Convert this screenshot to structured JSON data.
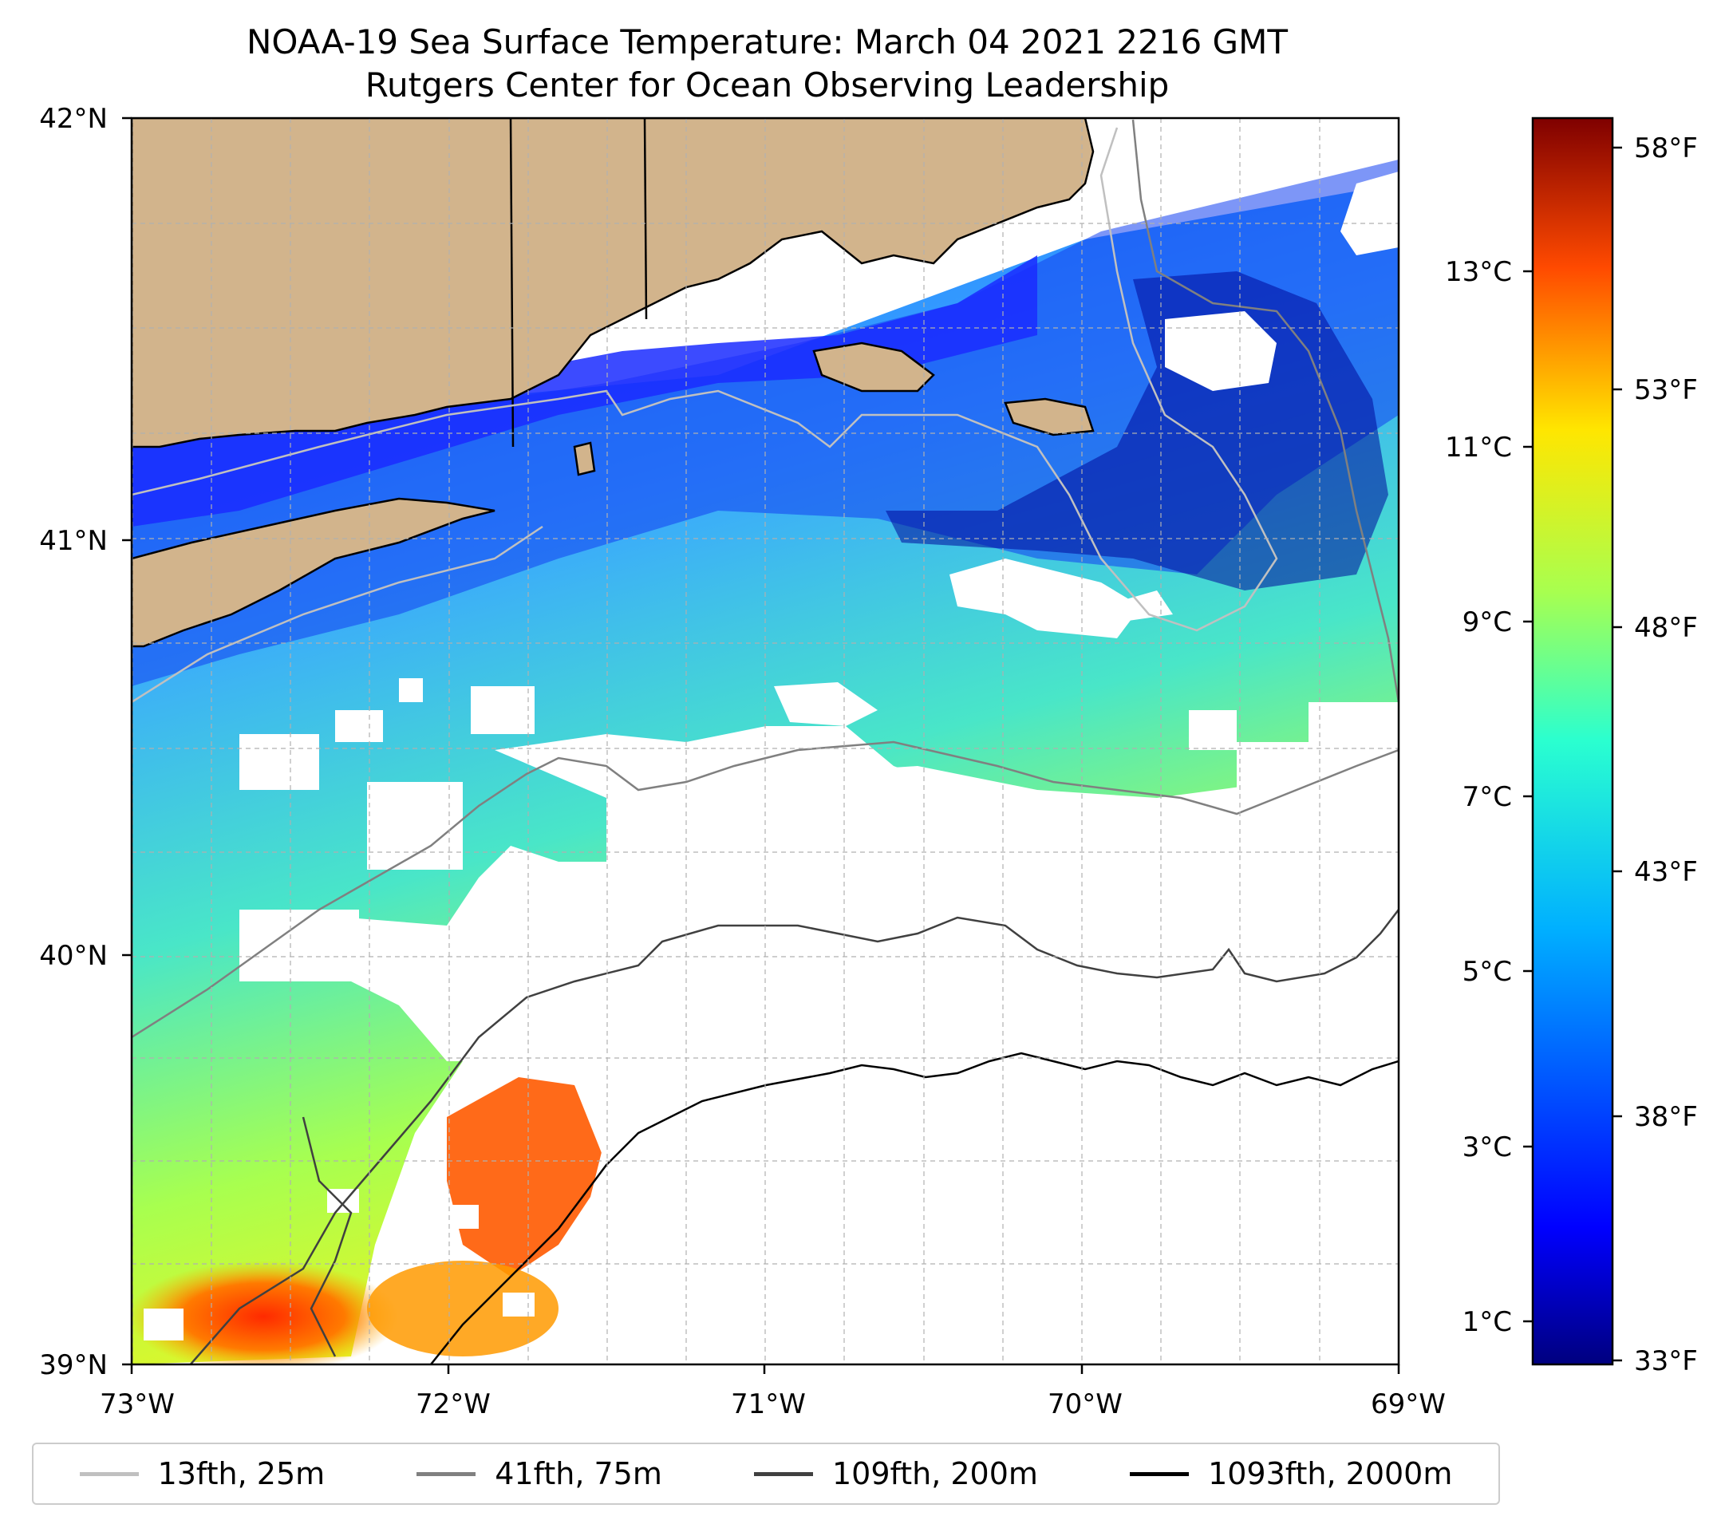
{
  "title": "NOAA-19 Sea Surface Temperature: March 04 2021 2216 GMT",
  "subtitle": "Rutgers Center for Ocean Observing Leadership",
  "map": {
    "lat_ticks": [
      "42°N",
      "41°N",
      "40°N",
      "39°N"
    ],
    "lon_ticks": [
      "73°W",
      "72°W",
      "71°W",
      "70°W",
      "69°W"
    ],
    "extent": {
      "lon": [
        -73,
        -69
      ],
      "lat": [
        39,
        42
      ]
    },
    "colors": {
      "land": "#d2b48c",
      "no_data": "#ffffff",
      "grid": "#b0b0b0"
    }
  },
  "colorbar": {
    "colormap": "jet",
    "celsius_ticks": [
      "13°C",
      "11°C",
      "9°C",
      "7°C",
      "5°C",
      "3°C",
      "1°C"
    ],
    "fahrenheit_ticks": [
      "58°F",
      "53°F",
      "48°F",
      "43°F",
      "38°F",
      "33°F"
    ]
  },
  "legend": [
    {
      "label": "13fth, 25m",
      "color": "#c0c0c0"
    },
    {
      "label": "41fth, 75m",
      "color": "#808080"
    },
    {
      "label": "109fth, 200m",
      "color": "#404040"
    },
    {
      "label": "1093fth, 2000m",
      "color": "#000000"
    }
  ]
}
